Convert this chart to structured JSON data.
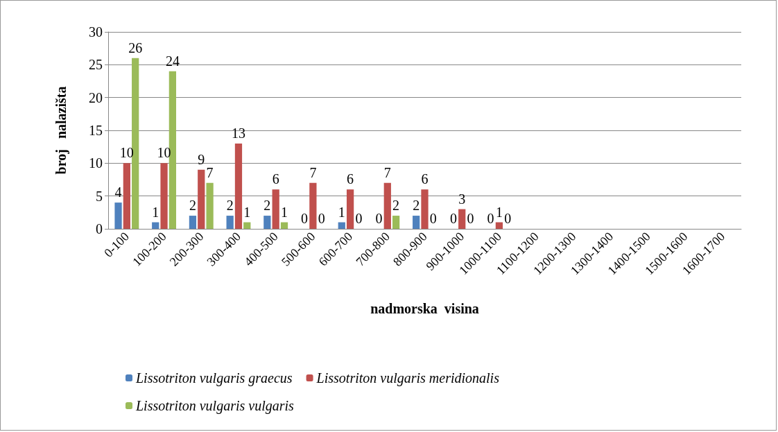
{
  "chart_data": {
    "type": "bar",
    "xlabel": "nadmorska  visina",
    "ylabel": "broj   nalazišta",
    "categories": [
      "0-100",
      "100-200",
      "200-300",
      "300-400",
      "400-500",
      "500-600",
      "600-700",
      "700-800",
      "800-900",
      "900-1000",
      "1000-1100",
      "1100-1200",
      "1200-1300",
      "1300-1400",
      "1400-1500",
      "1500-1600",
      "1600-1700"
    ],
    "series": [
      {
        "name": "Lissotriton vulgaris graecus",
        "color": "#4f81bd",
        "values": [
          4,
          1,
          2,
          2,
          2,
          0,
          1,
          0,
          2,
          0,
          0,
          0,
          0,
          0,
          0,
          0,
          0
        ],
        "value_labels": [
          "4",
          "1",
          "2",
          "2",
          "2",
          "0",
          "1",
          "0",
          "2",
          "0",
          "0",
          null,
          null,
          null,
          null,
          null,
          null
        ]
      },
      {
        "name": "Lissotriton vulgaris meridionalis",
        "color": "#c0504d",
        "values": [
          10,
          10,
          9,
          13,
          6,
          7,
          6,
          7,
          6,
          3,
          1,
          0,
          0,
          0,
          0,
          0,
          0
        ],
        "value_labels": [
          "10",
          "10",
          "9",
          "13",
          "6",
          "7",
          "6",
          "7",
          "6",
          "3",
          "1",
          null,
          null,
          null,
          null,
          null,
          null
        ]
      },
      {
        "name": "Lissotriton vulgaris vulgaris",
        "color": "#9bbb59",
        "values": [
          26,
          24,
          7,
          1,
          1,
          0,
          0,
          2,
          0,
          0,
          0,
          0,
          0,
          0,
          0,
          0,
          0
        ],
        "value_labels": [
          "26",
          "24",
          "7",
          "1",
          "1",
          "0",
          "0",
          "2",
          "0",
          "0",
          "0",
          null,
          null,
          null,
          null,
          null,
          null
        ]
      }
    ],
    "ylim": [
      0,
      30
    ],
    "yticks": [
      0,
      5,
      10,
      15,
      20,
      25,
      30
    ],
    "grid": "y",
    "legend": "bottom"
  }
}
